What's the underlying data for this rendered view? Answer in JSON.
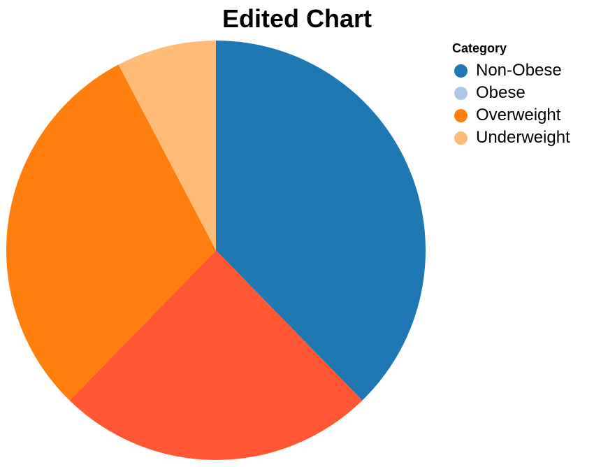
{
  "chart_data": {
    "type": "pie",
    "title": "Edited Chart",
    "legend": {
      "title": "Category",
      "placement": "top-right"
    },
    "categories": [
      "Non-Obese",
      "Obese",
      "Overweight",
      "Underweight"
    ],
    "slices": [
      {
        "label": "Non-Obese",
        "value": 37.7,
        "color": "#1f77b4"
      },
      {
        "label": "Obese",
        "value": 24.6,
        "color": "#ff5733"
      },
      {
        "label": "Overweight",
        "value": 30.0,
        "color": "#ff7f0e"
      },
      {
        "label": "Underweight",
        "value": 7.7,
        "color": "#ffbb78"
      }
    ],
    "legend_colors": [
      "#1f77b4",
      "#aec7e8",
      "#ff7f0e",
      "#ffbb78"
    ]
  }
}
